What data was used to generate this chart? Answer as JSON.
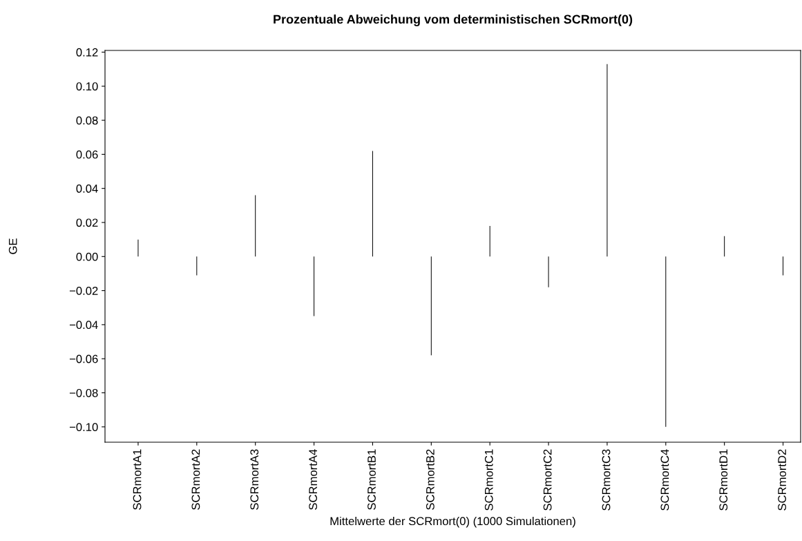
{
  "chart_data": {
    "type": "bar",
    "title": "Prozentuale Abweichung vom deterministischen SCRmort(0)",
    "xlabel": "Mittelwerte der SCRmort(0) (1000 Simulationen)",
    "ylabel": "GE",
    "categories": [
      "SCRmortA1",
      "SCRmortA2",
      "SCRmortA3",
      "SCRmortA4",
      "SCRmortB1",
      "SCRmortB2",
      "SCRmortC1",
      "SCRmortC2",
      "SCRmortC3",
      "SCRmortC4",
      "SCRmortD1",
      "SCRmortD2"
    ],
    "values": [
      0.01,
      -0.011,
      0.036,
      -0.035,
      0.062,
      -0.058,
      0.018,
      -0.018,
      0.113,
      -0.1,
      0.012,
      -0.011
    ],
    "color": "#000000",
    "ylim": [
      -0.109,
      0.121
    ],
    "yticks": [
      {
        "value": -0.1,
        "label": "−0.10"
      },
      {
        "value": -0.08,
        "label": "−0.08"
      },
      {
        "value": -0.06,
        "label": "−0.06"
      },
      {
        "value": -0.04,
        "label": "−0.04"
      },
      {
        "value": -0.02,
        "label": "−0.02"
      },
      {
        "value": 0.0,
        "label": "0.00"
      },
      {
        "value": 0.02,
        "label": "0.02"
      },
      {
        "value": 0.04,
        "label": "0.04"
      },
      {
        "value": 0.06,
        "label": "0.06"
      },
      {
        "value": 0.08,
        "label": "0.08"
      },
      {
        "value": 0.1,
        "label": "0.10"
      },
      {
        "value": 0.12,
        "label": "0.12"
      }
    ],
    "grid": false,
    "legend": false
  }
}
